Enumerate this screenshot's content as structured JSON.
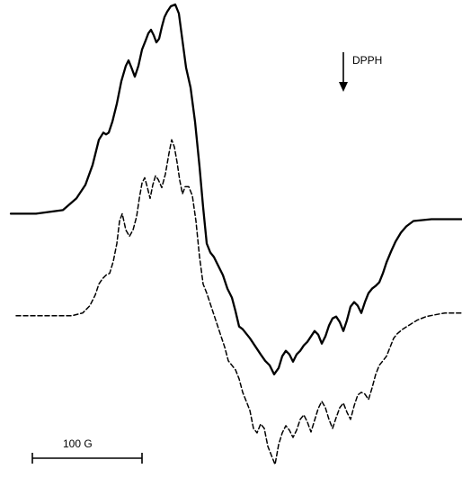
{
  "chart_data": {
    "type": "line",
    "title": "",
    "xlabel": "",
    "ylabel": "",
    "grid": false,
    "axes_visible": false,
    "xlim": [
      0,
      514
    ],
    "ylim": [
      -265,
      265
    ],
    "series": [
      {
        "style": "solid",
        "color": "#000000",
        "x": [
          12,
          40,
          70,
          85,
          95,
          103,
          110,
          115,
          118,
          121,
          125,
          130,
          135,
          140,
          143,
          147,
          150,
          154,
          158,
          162,
          165,
          168,
          171,
          174,
          177,
          180,
          183,
          186,
          190,
          195,
          199,
          203,
          207,
          212,
          217,
          222,
          226,
          230,
          234,
          238,
          243,
          248,
          253,
          258,
          262,
          266,
          270,
          274,
          278,
          282,
          286,
          290,
          295,
          300,
          305,
          310,
          314,
          318,
          322,
          326,
          330,
          334,
          338,
          342,
          346,
          350,
          354,
          358,
          362,
          366,
          370,
          374,
          378,
          382,
          386,
          390,
          394,
          398,
          402,
          406,
          410,
          414,
          418,
          422,
          426,
          430,
          435,
          440,
          446,
          452,
          460,
          480,
          514
        ],
        "y": [
          28,
          28,
          32,
          45,
          60,
          82,
          110,
          118,
          116,
          118,
          130,
          150,
          175,
          192,
          198,
          188,
          180,
          192,
          210,
          220,
          228,
          232,
          226,
          218,
          222,
          235,
          246,
          252,
          258,
          260,
          250,
          220,
          190,
          168,
          130,
          80,
          35,
          -5,
          -15,
          -20,
          -30,
          -40,
          -55,
          -65,
          -80,
          -97,
          -100,
          -105,
          -110,
          -116,
          -122,
          -128,
          -135,
          -140,
          -150,
          -143,
          -130,
          -124,
          -128,
          -136,
          -128,
          -124,
          -118,
          -114,
          -108,
          -102,
          -106,
          -116,
          -108,
          -96,
          -88,
          -86,
          -92,
          -102,
          -90,
          -75,
          -70,
          -74,
          -82,
          -70,
          -60,
          -55,
          -52,
          -48,
          -38,
          -26,
          -14,
          -3,
          7,
          14,
          20,
          22,
          22
        ]
      },
      {
        "style": "dashed",
        "color": "#000000",
        "x": [
          18,
          50,
          80,
          92,
          100,
          106,
          110,
          114,
          118,
          122,
          126,
          130,
          133,
          136,
          140,
          144,
          148,
          152,
          155,
          158,
          161,
          164,
          167,
          170,
          173,
          176,
          180,
          184,
          188,
          191,
          194,
          197,
          200,
          203,
          206,
          210,
          214,
          218,
          222,
          226,
          230,
          235,
          240,
          245,
          250,
          254,
          258,
          262,
          266,
          270,
          274,
          278,
          282,
          286,
          290,
          294,
          298,
          302,
          306,
          310,
          314,
          318,
          322,
          326,
          330,
          334,
          338,
          342,
          346,
          350,
          354,
          358,
          362,
          366,
          370,
          374,
          378,
          382,
          386,
          390,
          394,
          398,
          402,
          406,
          410,
          414,
          418,
          422,
          426,
          430,
          434,
          438,
          442,
          448,
          456,
          464,
          474,
          484,
          495,
          514
        ],
        "y": [
          -85,
          -85,
          -85,
          -82,
          -74,
          -62,
          -50,
          -44,
          -40,
          -38,
          -25,
          -5,
          20,
          28,
          10,
          3,
          10,
          25,
          45,
          62,
          68,
          57,
          45,
          60,
          70,
          66,
          57,
          72,
          95,
          110,
          102,
          85,
          65,
          50,
          58,
          58,
          48,
          20,
          -20,
          -50,
          -60,
          -75,
          -90,
          -105,
          -120,
          -135,
          -140,
          -145,
          -155,
          -170,
          -180,
          -190,
          -210,
          -215,
          -205,
          -210,
          -230,
          -240,
          -250,
          -228,
          -215,
          -207,
          -212,
          -220,
          -212,
          -200,
          -195,
          -203,
          -214,
          -201,
          -188,
          -180,
          -187,
          -200,
          -210,
          -198,
          -187,
          -182,
          -192,
          -200,
          -185,
          -173,
          -170,
          -172,
          -178,
          -165,
          -150,
          -140,
          -135,
          -130,
          -120,
          -110,
          -105,
          -100,
          -95,
          -90,
          -86,
          -84,
          -82,
          -82
        ]
      }
    ],
    "annotations": [
      {
        "text": "DPPH",
        "marker": "down-arrow"
      }
    ],
    "scale_bar": {
      "label": "100 G"
    }
  }
}
